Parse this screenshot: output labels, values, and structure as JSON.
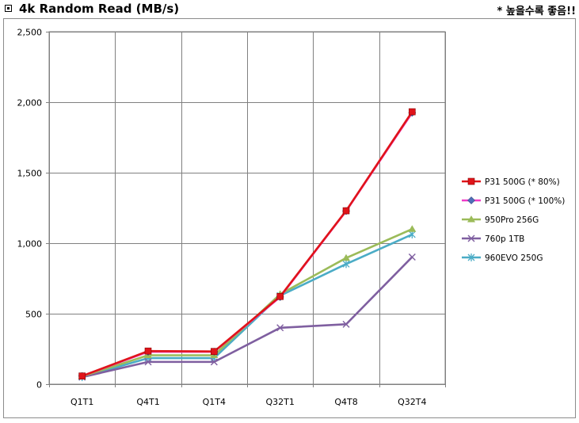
{
  "header": {
    "title": "4k Random Read (MB/s)",
    "note": "* 높을수록 좋음!!"
  },
  "chart_data": {
    "type": "line",
    "categories": [
      "Q1T1",
      "Q4T1",
      "Q1T4",
      "Q32T1",
      "Q4T8",
      "Q32T4"
    ],
    "ylim": [
      0,
      2500
    ],
    "yticks": [
      "0",
      "500",
      "1,000",
      "1,500",
      "2,000",
      "2,500"
    ],
    "ytick_values": [
      0,
      500,
      1000,
      1500,
      2000,
      2500
    ],
    "grid": true,
    "legend_position": "right",
    "series": [
      {
        "name": "P31 500G (* 80%)",
        "color": "#e0141a",
        "marker": "square",
        "values": [
          58,
          235,
          232,
          622,
          1230,
          1932
        ]
      },
      {
        "name": "P31 500G (* 100%)",
        "color": "#f03cc8",
        "marker": "diamond",
        "values": [
          58,
          230,
          230,
          618,
          1228,
          1925
        ]
      },
      {
        "name": "950Pro 256G",
        "color": "#9bbb59",
        "marker": "triangle",
        "values": [
          55,
          205,
          205,
          638,
          895,
          1100
        ]
      },
      {
        "name": "760p 1TB",
        "color": "#7f5fa0",
        "marker": "x",
        "values": [
          50,
          158,
          158,
          400,
          425,
          902
        ]
      },
      {
        "name": "960EVO 250G",
        "color": "#4bacc6",
        "marker": "star",
        "values": [
          50,
          185,
          185,
          628,
          852,
          1062
        ]
      }
    ]
  }
}
